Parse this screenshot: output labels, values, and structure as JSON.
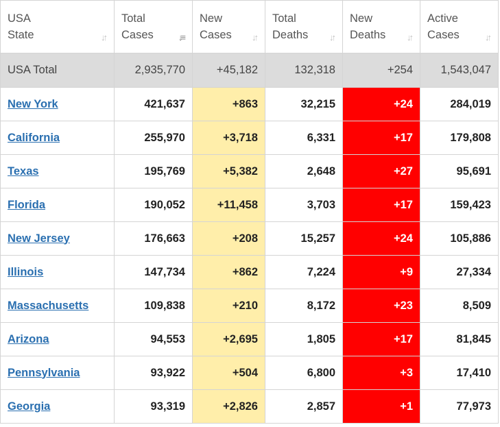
{
  "headers": {
    "state": [
      "USA",
      "State"
    ],
    "total_cases": [
      "Total",
      "Cases"
    ],
    "new_cases": [
      "New",
      "Cases"
    ],
    "total_deaths": [
      "Total",
      "Deaths"
    ],
    "new_deaths": [
      "New",
      "Deaths"
    ],
    "active_cases": [
      "Active",
      "Cases"
    ]
  },
  "totals": {
    "label": "USA Total",
    "total_cases": "2,935,770",
    "new_cases": "+45,182",
    "total_deaths": "132,318",
    "new_deaths": "+254",
    "active_cases": "1,543,047"
  },
  "rows": [
    {
      "state": "New York",
      "total_cases": "421,637",
      "new_cases": "+863",
      "total_deaths": "32,215",
      "new_deaths": "+24",
      "active_cases": "284,019"
    },
    {
      "state": "California",
      "total_cases": "255,970",
      "new_cases": "+3,718",
      "total_deaths": "6,331",
      "new_deaths": "+17",
      "active_cases": "179,808"
    },
    {
      "state": "Texas",
      "total_cases": "195,769",
      "new_cases": "+5,382",
      "total_deaths": "2,648",
      "new_deaths": "+27",
      "active_cases": "95,691"
    },
    {
      "state": "Florida",
      "total_cases": "190,052",
      "new_cases": "+11,458",
      "total_deaths": "3,703",
      "new_deaths": "+17",
      "active_cases": "159,423"
    },
    {
      "state": "New Jersey",
      "total_cases": "176,663",
      "new_cases": "+208",
      "total_deaths": "15,257",
      "new_deaths": "+24",
      "active_cases": "105,886"
    },
    {
      "state": "Illinois",
      "total_cases": "147,734",
      "new_cases": "+862",
      "total_deaths": "7,224",
      "new_deaths": "+9",
      "active_cases": "27,334"
    },
    {
      "state": "Massachusetts",
      "total_cases": "109,838",
      "new_cases": "+210",
      "total_deaths": "8,172",
      "new_deaths": "+23",
      "active_cases": "8,509"
    },
    {
      "state": "Arizona",
      "total_cases": "94,553",
      "new_cases": "+2,695",
      "total_deaths": "1,805",
      "new_deaths": "+17",
      "active_cases": "81,845"
    },
    {
      "state": "Pennsylvania",
      "total_cases": "93,922",
      "new_cases": "+504",
      "total_deaths": "6,800",
      "new_deaths": "+3",
      "active_cases": "17,410"
    },
    {
      "state": "Georgia",
      "total_cases": "93,319",
      "new_cases": "+2,826",
      "total_deaths": "2,857",
      "new_deaths": "+1",
      "active_cases": "77,973"
    }
  ],
  "colors": {
    "new_cases_bg": "#ffeeaa",
    "new_deaths_bg": "#ff0000",
    "link": "#2a6fb0",
    "total_row_bg": "#dcdcdc"
  },
  "icons": {
    "sort": "sort-icon",
    "sort_active": "sort-desc-icon"
  }
}
